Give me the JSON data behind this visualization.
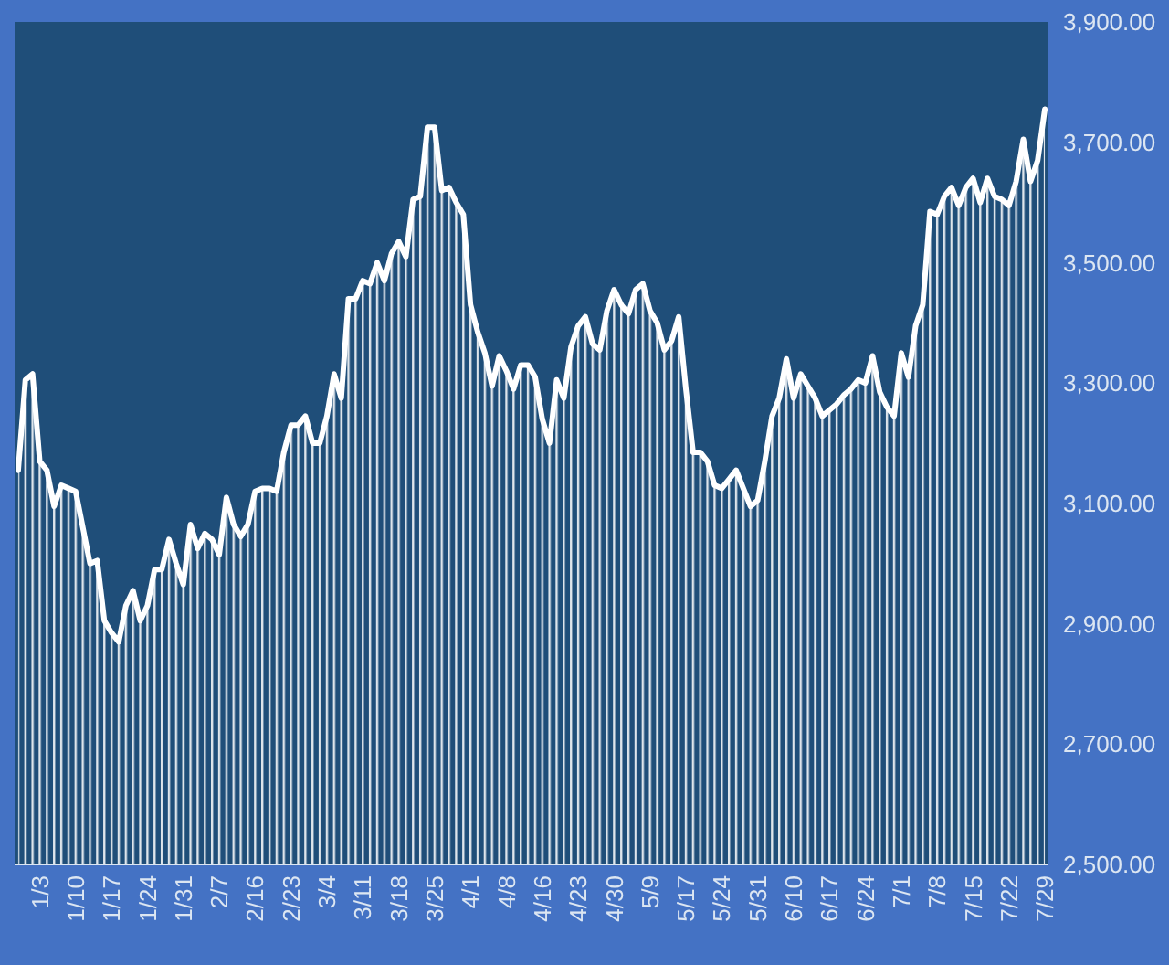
{
  "chart_data": {
    "type": "area",
    "categories": [
      null,
      null,
      null,
      "1/3",
      null,
      null,
      null,
      null,
      "1/10",
      null,
      null,
      null,
      null,
      "1/17",
      null,
      null,
      null,
      null,
      "1/24",
      null,
      null,
      null,
      null,
      "1/31",
      null,
      null,
      null,
      null,
      "2/7",
      null,
      null,
      null,
      null,
      "2/16",
      null,
      null,
      null,
      null,
      "2/23",
      null,
      null,
      null,
      null,
      "3/4",
      null,
      null,
      null,
      null,
      "3/11",
      null,
      null,
      null,
      null,
      "3/18",
      null,
      null,
      null,
      null,
      "3/25",
      null,
      null,
      null,
      null,
      "4/1",
      null,
      null,
      null,
      null,
      "4/8",
      null,
      null,
      null,
      null,
      "4/16",
      null,
      null,
      null,
      null,
      "4/23",
      null,
      null,
      null,
      null,
      "4/30",
      null,
      null,
      null,
      null,
      "5/9",
      null,
      null,
      null,
      null,
      "5/17",
      null,
      null,
      null,
      null,
      "5/24",
      null,
      null,
      null,
      null,
      "5/31",
      null,
      null,
      null,
      null,
      "6/10",
      null,
      null,
      null,
      null,
      "6/17",
      null,
      null,
      null,
      null,
      "6/24",
      null,
      null,
      null,
      null,
      "7/1",
      null,
      null,
      null,
      null,
      "7/8",
      null,
      null,
      null,
      null,
      "7/15",
      null,
      null,
      null,
      null,
      "7/22",
      null,
      null,
      null,
      null,
      "7/29"
    ],
    "color": "#ffffff",
    "values": [
      3155,
      3305,
      3315,
      3170,
      3155,
      3095,
      3130,
      3125,
      3120,
      3060,
      3000,
      3005,
      2905,
      2885,
      2870,
      2930,
      2955,
      2905,
      2930,
      2990,
      2990,
      3040,
      3000,
      2965,
      3065,
      3025,
      3050,
      3040,
      3015,
      3110,
      3065,
      3045,
      3065,
      3120,
      3125,
      3125,
      3120,
      3185,
      3230,
      3230,
      3245,
      3200,
      3200,
      3245,
      3315,
      3275,
      3440,
      3440,
      3470,
      3465,
      3500,
      3470,
      3515,
      3535,
      3510,
      3605,
      3610,
      3725,
      3725,
      3620,
      3625,
      3600,
      3580,
      3430,
      3385,
      3350,
      3295,
      3345,
      3320,
      3290,
      3330,
      3330,
      3310,
      3240,
      3200,
      3305,
      3275,
      3360,
      3395,
      3410,
      3365,
      3355,
      3420,
      3455,
      3430,
      3415,
      3455,
      3465,
      3420,
      3400,
      3355,
      3370,
      3410,
      3290,
      3185,
      3185,
      3170,
      3130,
      3125,
      3140,
      3155,
      3125,
      3095,
      3105,
      3170,
      3245,
      3275,
      3340,
      3275,
      3315,
      3295,
      3275,
      3245,
      3255,
      3265,
      3280,
      3290,
      3305,
      3300,
      3345,
      3285,
      3260,
      3245,
      3350,
      3310,
      3395,
      3430,
      3585,
      3580,
      3610,
      3625,
      3595,
      3625,
      3640,
      3600,
      3640,
      3610,
      3605,
      3595,
      3635,
      3705,
      3635,
      3670,
      3755
    ],
    "ylim": [
      2500,
      3900
    ],
    "yticks": [
      {
        "value": 2500,
        "label": "2,500.00"
      },
      {
        "value": 2700,
        "label": "2,700.00"
      },
      {
        "value": 2900,
        "label": "2,900.00"
      },
      {
        "value": 3100,
        "label": "3,100.00"
      },
      {
        "value": 3300,
        "label": "3,300.00"
      },
      {
        "value": 3500,
        "label": "3,500.00"
      },
      {
        "value": 3700,
        "label": "3,700.00"
      },
      {
        "value": 3900,
        "label": "3,900.00"
      }
    ],
    "marker": "none",
    "line_style": "solid",
    "grid": false
  }
}
